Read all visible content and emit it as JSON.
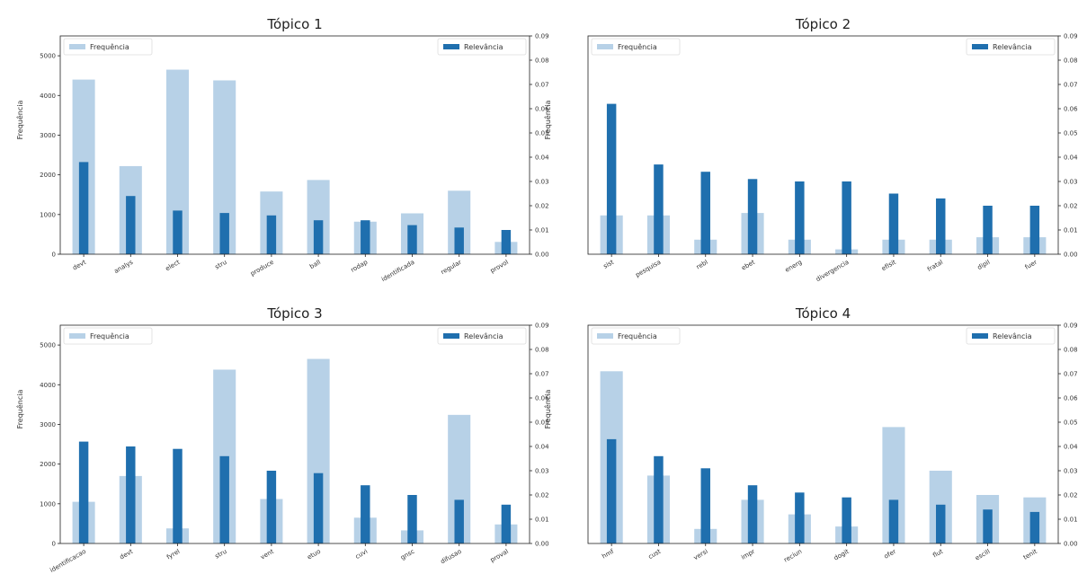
{
  "colors": {
    "freq": "#b7d1e7",
    "rel": "#1f6fae",
    "axis": "#222222",
    "legend_border": "#dddddd"
  },
  "legend": {
    "freq": "Frequência",
    "rel": "Relevância"
  },
  "y_left_label": "Frequência",
  "chart_data": [
    {
      "type": "bar",
      "title": "Tópico 1",
      "categories": [
        "devt",
        "analys",
        "elect",
        "stru",
        "produce",
        "ball",
        "rodap",
        "identificada",
        "regular",
        "provol"
      ],
      "series": [
        {
          "name": "Frequência",
          "axis": "left",
          "values": [
            4400,
            2220,
            4650,
            4380,
            1580,
            1870,
            820,
            1030,
            1600,
            310
          ]
        },
        {
          "name": "Relevância",
          "axis": "right",
          "values": [
            0.038,
            0.024,
            0.018,
            0.017,
            0.016,
            0.014,
            0.014,
            0.012,
            0.011,
            0.01
          ]
        }
      ],
      "left_ticks": [
        "0",
        "1000",
        "2000",
        "3000",
        "4000",
        "5000"
      ],
      "left_ylim": [
        0,
        5500
      ],
      "right_ticks": [
        "0.00",
        "0.01",
        "0.02",
        "0.03",
        "0.04",
        "0.05",
        "0.06",
        "0.07",
        "0.08",
        "0.09"
      ],
      "right_ylim": [
        0,
        0.09
      ]
    },
    {
      "type": "bar",
      "title": "Tópico 2",
      "categories": [
        "sist",
        "pesquisa",
        "rebl",
        "ebet",
        "energ",
        "divergencia",
        "efisit",
        "fratal",
        "dipil",
        "fuer"
      ],
      "series": [
        {
          "name": "Frequência",
          "axis": "left",
          "values": [
            0.016,
            0.016,
            0.006,
            0.017,
            0.006,
            0.002,
            0.006,
            0.006,
            0.007,
            0.007
          ]
        },
        {
          "name": "Relevância",
          "axis": "right",
          "values": [
            0.062,
            0.037,
            0.034,
            0.031,
            0.03,
            0.03,
            0.025,
            0.023,
            0.02,
            0.02
          ]
        }
      ],
      "left_ticks": [],
      "left_ylim": [
        0,
        0.09
      ],
      "right_ticks": [
        "0.00",
        "0.01",
        "0.02",
        "0.03",
        "0.04",
        "0.05",
        "0.06",
        "0.07",
        "0.08",
        "0.09"
      ],
      "right_ylim": [
        0,
        0.09
      ]
    },
    {
      "type": "bar",
      "title": "Tópico 3",
      "categories": [
        "identificacao",
        "devt",
        "fyrel",
        "stru",
        "vent",
        "etuo",
        "cuvi",
        "gnsc",
        "difusao",
        "proval"
      ],
      "series": [
        {
          "name": "Frequência",
          "axis": "left",
          "values": [
            1050,
            1700,
            380,
            4380,
            1120,
            4650,
            650,
            330,
            3240,
            480
          ]
        },
        {
          "name": "Relevância",
          "axis": "right",
          "values": [
            0.042,
            0.04,
            0.039,
            0.036,
            0.03,
            0.029,
            0.024,
            0.02,
            0.018,
            0.016
          ]
        }
      ],
      "left_ticks": [
        "0",
        "1000",
        "2000",
        "3000",
        "4000",
        "5000"
      ],
      "left_ylim": [
        0,
        5500
      ],
      "right_ticks": [
        "0.00",
        "0.01",
        "0.02",
        "0.03",
        "0.04",
        "0.05",
        "0.06",
        "0.07",
        "0.08",
        "0.09"
      ],
      "right_ylim": [
        0,
        0.09
      ]
    },
    {
      "type": "bar",
      "title": "Tópico 4",
      "categories": [
        "hmf",
        "cust",
        "versi",
        "impr",
        "reciun",
        "dogit",
        "ofer",
        "flut",
        "escill",
        "tenit"
      ],
      "series": [
        {
          "name": "Frequência",
          "axis": "left",
          "values": [
            0.071,
            0.028,
            0.006,
            0.018,
            0.012,
            0.007,
            0.048,
            0.03,
            0.02,
            0.019
          ]
        },
        {
          "name": "Relevância",
          "axis": "right",
          "values": [
            0.043,
            0.036,
            0.031,
            0.024,
            0.021,
            0.019,
            0.018,
            0.016,
            0.014,
            0.013
          ]
        }
      ],
      "left_ticks": [],
      "left_ylim": [
        0,
        0.09
      ],
      "right_ticks": [
        "0.00",
        "0.01",
        "0.02",
        "0.03",
        "0.04",
        "0.05",
        "0.06",
        "0.07",
        "0.08",
        "0.09"
      ],
      "right_ylim": [
        0,
        0.09
      ]
    }
  ]
}
